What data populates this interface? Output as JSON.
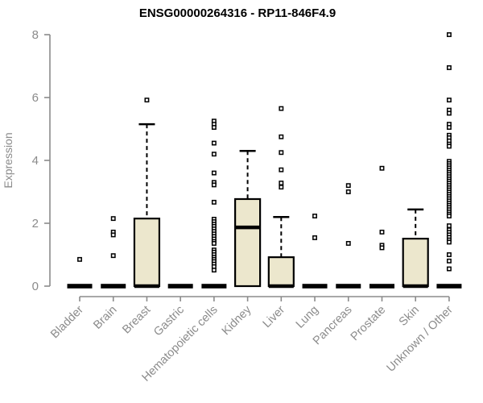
{
  "chart_data": {
    "type": "boxplot",
    "title": "ENSG00000264316 - RP11-846F4.9",
    "ylabel": "Expression",
    "xlabel": "",
    "ylim": [
      0,
      8
    ],
    "yticks": [
      0,
      2,
      4,
      6,
      8
    ],
    "grid": false,
    "legend": "none",
    "outlier_marker": "open-square",
    "categories": [
      "Bladder",
      "Brain",
      "Breast",
      "Gastric",
      "Hematopoietic cells",
      "Kidney",
      "Liver",
      "Lung",
      "Pancreas",
      "Prostate",
      "Skin",
      "Unknown / Other"
    ],
    "boxes": [
      {
        "category": "Bladder",
        "q1": 0,
        "median": 0,
        "q3": 0,
        "whisker_low": 0,
        "whisker_high": 0,
        "outliers": [
          0.85
        ]
      },
      {
        "category": "Brain",
        "q1": 0,
        "median": 0,
        "q3": 0,
        "whisker_low": 0,
        "whisker_high": 0,
        "outliers": [
          2.15,
          1.72,
          1.63,
          0.97
        ]
      },
      {
        "category": "Breast",
        "q1": 0,
        "median": 0,
        "q3": 2.15,
        "whisker_low": 0,
        "whisker_high": 5.15,
        "outliers": [
          5.92
        ]
      },
      {
        "category": "Gastric",
        "q1": 0,
        "median": 0,
        "q3": 0,
        "whisker_low": 0,
        "whisker_high": 0,
        "outliers": []
      },
      {
        "category": "Hematopoietic cells",
        "q1": 0,
        "median": 0,
        "q3": 0,
        "whisker_low": 0,
        "whisker_high": 0,
        "outliers": [
          5.25,
          5.15,
          5.05,
          4.55,
          4.2,
          3.6,
          3.3,
          3.22,
          2.67,
          2.13,
          2.05,
          1.97,
          1.9,
          1.82,
          1.74,
          1.66,
          1.58,
          1.5,
          1.42,
          1.36,
          1.15,
          1.08,
          1.0,
          0.92,
          0.85,
          0.78,
          0.7,
          0.62,
          0.51
        ]
      },
      {
        "category": "Kidney",
        "q1": 0,
        "median": 1.87,
        "q3": 2.77,
        "whisker_low": 0,
        "whisker_high": 4.3,
        "outliers": []
      },
      {
        "category": "Liver",
        "q1": 0,
        "median": 0,
        "q3": 0.92,
        "whisker_low": 0,
        "whisker_high": 2.2,
        "outliers": [
          5.65,
          4.75,
          4.25,
          3.7,
          3.28,
          3.15
        ]
      },
      {
        "category": "Lung",
        "q1": 0,
        "median": 0,
        "q3": 0,
        "whisker_low": 0,
        "whisker_high": 0,
        "outliers": [
          2.23,
          1.54
        ]
      },
      {
        "category": "Pancreas",
        "q1": 0,
        "median": 0,
        "q3": 0,
        "whisker_low": 0,
        "whisker_high": 0,
        "outliers": [
          3.2,
          3.0,
          1.36
        ]
      },
      {
        "category": "Prostate",
        "q1": 0,
        "median": 0,
        "q3": 0,
        "whisker_low": 0,
        "whisker_high": 0,
        "outliers": [
          3.75,
          1.72,
          1.3,
          1.22
        ]
      },
      {
        "category": "Skin",
        "q1": 0,
        "median": 0,
        "q3": 1.51,
        "whisker_low": 0,
        "whisker_high": 2.44,
        "outliers": []
      },
      {
        "category": "Unknown / Other",
        "q1": 0,
        "median": 0,
        "q3": 0,
        "whisker_low": 0,
        "whisker_high": 0,
        "outliers": [
          8.0,
          6.95,
          5.92,
          5.6,
          5.5,
          5.15,
          5.05,
          4.8,
          4.72,
          4.62,
          4.52,
          4.45,
          3.97,
          3.9,
          3.83,
          3.76,
          3.69,
          3.62,
          3.55,
          3.48,
          3.41,
          3.34,
          3.27,
          3.2,
          3.13,
          3.06,
          2.99,
          2.92,
          2.85,
          2.78,
          2.71,
          2.64,
          2.57,
          2.5,
          2.43,
          2.36,
          2.29,
          2.23,
          1.92,
          1.79,
          1.71,
          1.63,
          1.55,
          1.47,
          1.4,
          1.0,
          0.8,
          0.55
        ]
      }
    ],
    "style": {
      "box_fill": "#ece7cd",
      "box_stroke": "#000000",
      "median_color": "#000000",
      "whisker_color": "#000000",
      "outlier_color": "#000000",
      "axis_color": "#8b8b8b",
      "tick_label_color": "#8b8b8b",
      "title_color": "#000000",
      "background": "#ffffff"
    }
  }
}
